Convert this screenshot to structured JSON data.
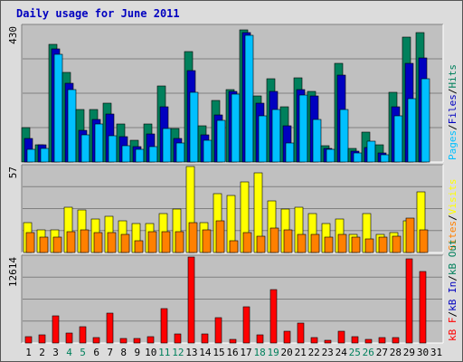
{
  "chart_data": {
    "type": "bar",
    "title": "Daily usage for June 2011",
    "title_color": "#0000c0",
    "background_color": "#dcdcdc",
    "plot_background_color": "#c0c0c0",
    "grid": true,
    "categories": [
      "1",
      "2",
      "3",
      "4",
      "5",
      "6",
      "7",
      "8",
      "9",
      "10",
      "11",
      "12",
      "13",
      "14",
      "15",
      "16",
      "17",
      "18",
      "19",
      "20",
      "21",
      "22",
      "23",
      "24",
      "25",
      "26",
      "27",
      "28",
      "29",
      "30",
      "31"
    ],
    "weekend_days": [
      "4",
      "5",
      "11",
      "12",
      "18",
      "19",
      "25",
      "26"
    ],
    "weekday_label_color": "#000000",
    "weekend_label_color": "#00805c",
    "panels": [
      {
        "name": "hits-files-pages",
        "ymax_label": "430",
        "ymax": 430,
        "legend": [
          {
            "text": "Pages",
            "color": "#00c0ff"
          },
          {
            "text": "/",
            "color": "#000000"
          },
          {
            "text": "Files",
            "color": "#0000c0"
          },
          {
            "text": "/",
            "color": "#000000"
          },
          {
            "text": "Hits",
            "color": "#00805c"
          }
        ],
        "series": [
          {
            "name": "Hits",
            "color": "#00805c",
            "values": [
              108,
              55,
              372,
              285,
              165,
              165,
              185,
              120,
              70,
              120,
              240,
              105,
              350,
              115,
              195,
              228,
              418,
              210,
              264,
              176,
              267,
              225,
              52,
              313,
              42,
              96,
              55,
              222,
              396,
              410,
              0
            ]
          },
          {
            "name": "Files",
            "color": "#0000c0",
            "values": [
              75,
              55,
              359,
              250,
              100,
              135,
              152,
              80,
              50,
              90,
              175,
              75,
              290,
              85,
              150,
              225,
              410,
              185,
              225,
              115,
              230,
              210,
              44,
              275,
              35,
              45,
              30,
              175,
              312,
              330,
              0
            ]
          },
          {
            "name": "Pages",
            "color": "#00c0ff",
            "values": [
              40,
              44,
              342,
              228,
              85,
              120,
              82,
              52,
              40,
              50,
              105,
              60,
              220,
              70,
              132,
              215,
              400,
              145,
              165,
              60,
              212,
              135,
              40,
              165,
              30,
              65,
              24,
              145,
              200,
              265,
              0
            ]
          }
        ]
      },
      {
        "name": "visits-sites",
        "ymax_label": "57",
        "ymax": 57,
        "legend": [
          {
            "text": "Sites",
            "color": "#ff8000"
          },
          {
            "text": "/",
            "color": "#000000"
          },
          {
            "text": "Visits",
            "color": "#ffff00"
          }
        ],
        "series": [
          {
            "name": "Visits",
            "color": "#ffff00",
            "values": [
              20,
              15,
              15,
              30,
              28,
              22,
              24,
              21,
              19,
              19,
              26,
              29,
              57,
              20,
              39,
              38,
              47,
              53,
              34,
              29,
              30,
              26,
              19,
              22,
              12,
              26,
              12,
              13,
              21,
              40,
              0
            ]
          },
          {
            "name": "Sites",
            "color": "#ff8000",
            "values": [
              13,
              10,
              10,
              14,
              15,
              13,
              13,
              12,
              8,
              14,
              14,
              14,
              20,
              15,
              21,
              8,
              13,
              11,
              16,
              15,
              12,
              12,
              10,
              12,
              10,
              9,
              10,
              11,
              23,
              15,
              0
            ]
          }
        ]
      },
      {
        "name": "kbytes",
        "ymax_label": "12614",
        "ymax": 12614,
        "legend": [
          {
            "text": "kB F",
            "color": "#ff0000"
          },
          {
            "text": "/",
            "color": "#000000"
          },
          {
            "text": "kB In",
            "color": "#0000c0"
          },
          {
            "text": "/",
            "color": "#000000"
          },
          {
            "text": "kB Out",
            "color": "#00805c"
          }
        ],
        "series": [
          {
            "name": "kB F",
            "color": "#ff0000",
            "values": [
              900,
              1140,
              3980,
              1480,
              2380,
              830,
              4370,
              680,
              720,
              920,
              5050,
              1320,
              12614,
              1300,
              3680,
              520,
              5350,
              1200,
              7850,
              1750,
              2870,
              740,
              360,
              1660,
              960,
              500,
              760,
              860,
              12300,
              10540,
              0
            ]
          }
        ]
      }
    ]
  }
}
